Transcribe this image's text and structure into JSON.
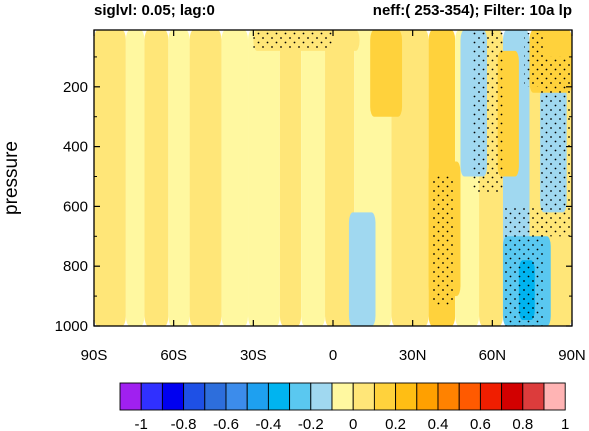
{
  "chart_data": {
    "type": "heatmap",
    "title_left": "siglvl: 0.05; lag:0",
    "title_right": "neff:( 253-354); Filter: 10a lp",
    "xlabel": "",
    "ylabel": "pressure",
    "x_ticks": [
      {
        "value": -90,
        "label": "90S"
      },
      {
        "value": -60,
        "label": "60S"
      },
      {
        "value": -30,
        "label": "30S"
      },
      {
        "value": 0,
        "label": "0"
      },
      {
        "value": 30,
        "label": "30N"
      },
      {
        "value": 60,
        "label": "60N"
      },
      {
        "value": 90,
        "label": "90N"
      }
    ],
    "xlim": [
      -90,
      90
    ],
    "y_ticks": [
      {
        "value": 200,
        "label": "200"
      },
      {
        "value": 400,
        "label": "400"
      },
      {
        "value": 600,
        "label": "600"
      },
      {
        "value": 800,
        "label": "800"
      },
      {
        "value": 1000,
        "label": "1000"
      }
    ],
    "ylim": [
      1000,
      10
    ],
    "y_reversed": true,
    "colorbar": {
      "levels": [
        -1,
        -0.9,
        -0.8,
        -0.7,
        -0.6,
        -0.5,
        -0.4,
        -0.3,
        -0.2,
        -0.1,
        0,
        0.1,
        0.2,
        0.3,
        0.4,
        0.5,
        0.6,
        0.7,
        0.8,
        0.9,
        1
      ],
      "labels": [
        "-1",
        "-0.8",
        "-0.6",
        "-0.4",
        "-0.2",
        "0",
        "0.2",
        "0.4",
        "0.6",
        "0.8",
        "1"
      ],
      "colors": [
        "#a020f0",
        "#3030ff",
        "#0000f0",
        "#1e50e6",
        "#2d6edc",
        "#3c8ceb",
        "#1ea0f0",
        "#00b4f0",
        "#5ac8f0",
        "#a0d8f0",
        "#fff8a0",
        "#ffe678",
        "#ffd23c",
        "#ffbe14",
        "#ffa000",
        "#ff8200",
        "#ff5a00",
        "#f01e00",
        "#d20000",
        "#dc3c3c",
        "#ffb4b4"
      ]
    },
    "field_bands": [
      {
        "x": [
          -90,
          -78
        ],
        "p": [
          10,
          1000
        ],
        "value": 0.05
      },
      {
        "x": [
          -78,
          -71
        ],
        "p": [
          10,
          1000
        ],
        "value": -0.05
      },
      {
        "x": [
          -71,
          -62
        ],
        "p": [
          10,
          1000
        ],
        "value": 0.05
      },
      {
        "x": [
          -62,
          -54
        ],
        "p": [
          10,
          1000
        ],
        "value": -0.05
      },
      {
        "x": [
          -54,
          -42
        ],
        "p": [
          10,
          1000
        ],
        "value": 0.05
      },
      {
        "x": [
          -42,
          -32
        ],
        "p": [
          10,
          1000
        ],
        "value": -0.05
      },
      {
        "x": [
          -32,
          -20
        ],
        "p": [
          10,
          1000
        ],
        "value": -0.05
      },
      {
        "x": [
          -20,
          -12
        ],
        "p": [
          10,
          1000
        ],
        "value": 0.05
      },
      {
        "x": [
          -12,
          -3
        ],
        "p": [
          10,
          1000
        ],
        "value": -0.05
      },
      {
        "x": [
          -3,
          8
        ],
        "p": [
          10,
          1000
        ],
        "value": 0.05
      },
      {
        "x": [
          8,
          22
        ],
        "p": [
          10,
          1000
        ],
        "value": -0.05
      },
      {
        "x": [
          22,
          36
        ],
        "p": [
          10,
          1000
        ],
        "value": 0.05
      },
      {
        "x": [
          36,
          46
        ],
        "p": [
          10,
          1000
        ],
        "value": 0.15
      },
      {
        "x": [
          46,
          55
        ],
        "p": [
          10,
          1000
        ],
        "value": -0.05
      },
      {
        "x": [
          55,
          64
        ],
        "p": [
          10,
          1000
        ],
        "value": 0.05
      },
      {
        "x": [
          64,
          74
        ],
        "p": [
          10,
          1000
        ],
        "value": -0.15
      },
      {
        "x": [
          74,
          90
        ],
        "p": [
          10,
          1000
        ],
        "value": 0.05
      }
    ],
    "field_patches": [
      {
        "x": [
          -30,
          10
        ],
        "p": [
          10,
          80
        ],
        "value": 0.05
      },
      {
        "x": [
          14,
          26
        ],
        "p": [
          10,
          300
        ],
        "value": 0.15
      },
      {
        "x": [
          40,
          44
        ],
        "p": [
          560,
          800
        ],
        "value": 0.35
      },
      {
        "x": [
          36,
          48
        ],
        "p": [
          450,
          900
        ],
        "value": 0.15
      },
      {
        "x": [
          48,
          58
        ],
        "p": [
          10,
          500
        ],
        "value": -0.15
      },
      {
        "x": [
          62,
          70
        ],
        "p": [
          80,
          500
        ],
        "value": 0.15
      },
      {
        "x": [
          64,
          82
        ],
        "p": [
          700,
          1000
        ],
        "value": -0.25
      },
      {
        "x": [
          70,
          76
        ],
        "p": [
          780,
          980
        ],
        "value": -0.35
      },
      {
        "x": [
          78,
          88
        ],
        "p": [
          200,
          620
        ],
        "value": -0.15
      },
      {
        "x": [
          74,
          90
        ],
        "p": [
          10,
          220
        ],
        "value": 0.15
      },
      {
        "x": [
          6,
          16
        ],
        "p": [
          620,
          1000
        ],
        "value": -0.15
      }
    ],
    "significance_stipple": [
      {
        "x": [
          -30,
          0
        ],
        "p": [
          10,
          70
        ]
      },
      {
        "x": [
          37,
          46
        ],
        "p": [
          500,
          930
        ]
      },
      {
        "x": [
          52,
          64
        ],
        "p": [
          10,
          560
        ]
      },
      {
        "x": [
          64,
          80
        ],
        "p": [
          600,
          1000
        ]
      },
      {
        "x": [
          78,
          90
        ],
        "p": [
          100,
          700
        ]
      },
      {
        "x": [
          72,
          80
        ],
        "p": [
          20,
          200
        ]
      }
    ]
  }
}
